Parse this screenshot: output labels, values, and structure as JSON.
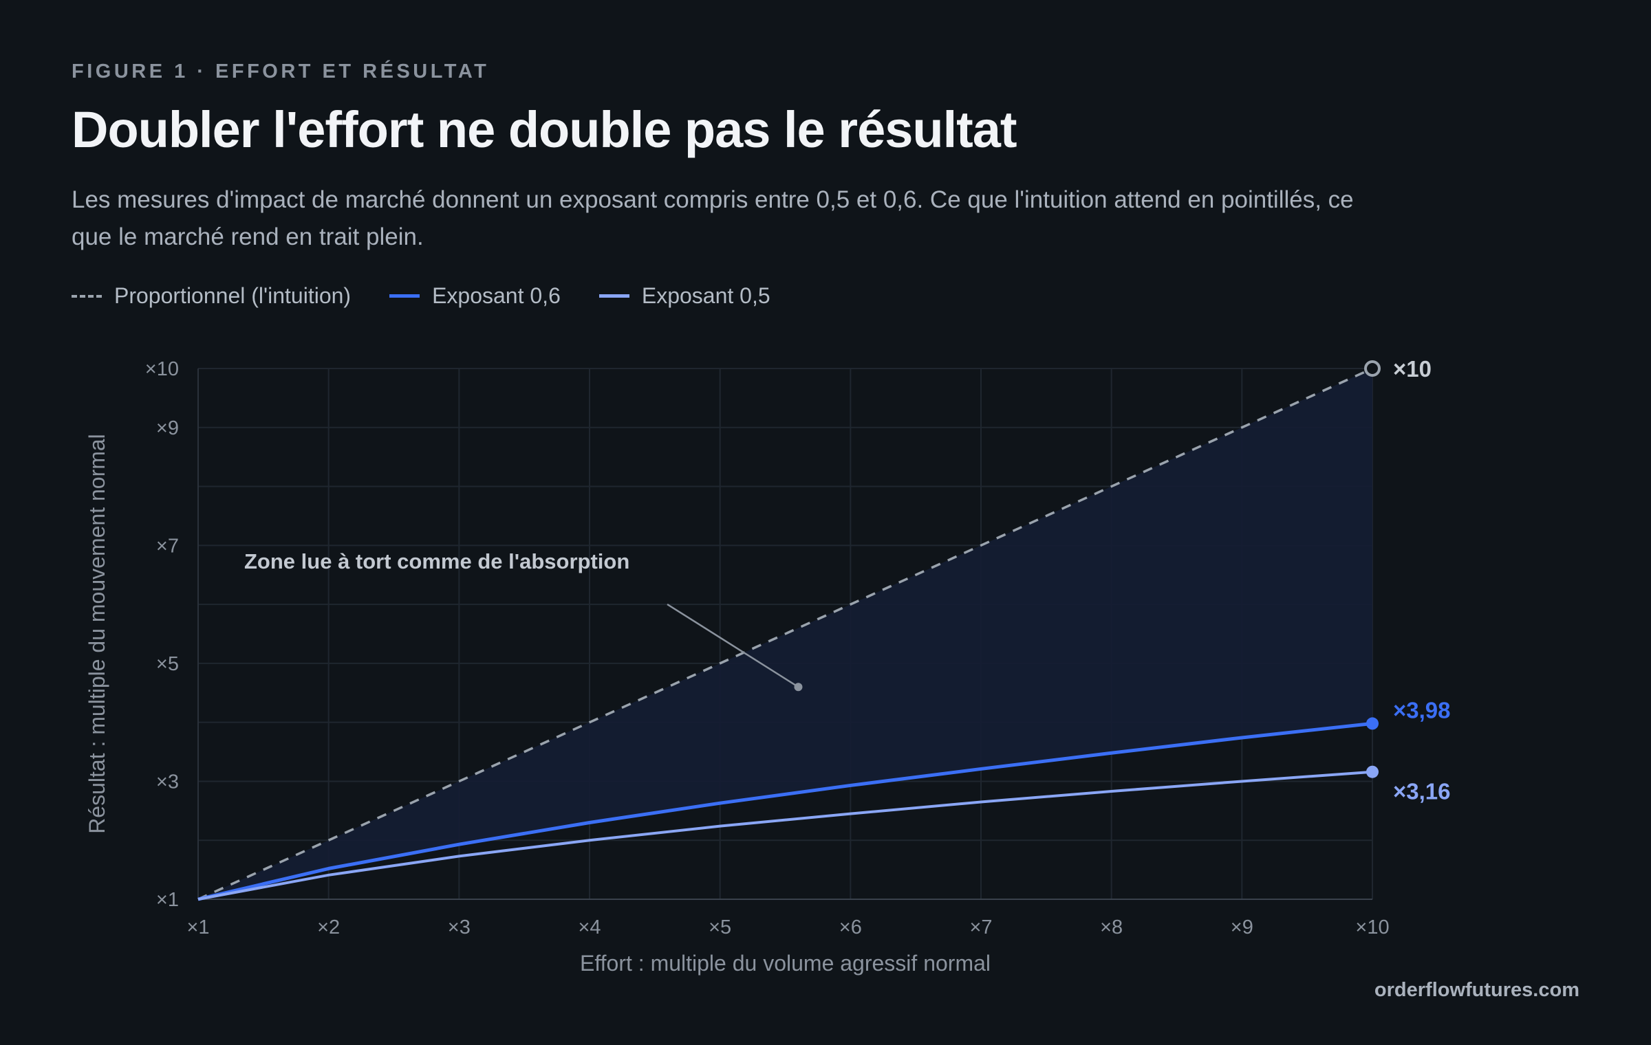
{
  "kicker": "FIGURE 1 · EFFORT ET RÉSULTAT",
  "title": "Doubler l'effort ne double pas le résultat",
  "subtitle": "Les mesures d'impact de marché donnent un exposant compris entre 0,5 et 0,6. Ce que l'intuition attend en pointillés, ce que le marché rend en trait plein.",
  "legend": [
    {
      "label": "Proportionnel (l'intuition)",
      "style": "dashed"
    },
    {
      "label": "Exposant 0,6",
      "style": "solid-dark"
    },
    {
      "label": "Exposant 0,5",
      "style": "solid-light"
    }
  ],
  "brand": "orderflowfutures.com",
  "colors": {
    "proportional": "#9aa3ad",
    "exp06": "#3b6ff5",
    "exp05": "#8aa6f5",
    "fill": "#141d33",
    "grid": "#1f262f",
    "tick": "#8b939e"
  },
  "chart_data": {
    "type": "line",
    "x": [
      1,
      2,
      3,
      4,
      5,
      6,
      7,
      8,
      9,
      10
    ],
    "xlabel": "Effort : multiple du volume agressif normal",
    "ylabel": "Résultat : multiple du mouvement normal",
    "xlim": [
      1,
      10
    ],
    "ylim": [
      1,
      10
    ],
    "xticks": [
      1,
      2,
      3,
      4,
      5,
      6,
      7,
      8,
      9,
      10
    ],
    "xtick_labels": [
      "×1",
      "×2",
      "×3",
      "×4",
      "×5",
      "×6",
      "×7",
      "×8",
      "×9",
      "×10"
    ],
    "yticks": [
      1,
      3,
      5,
      7,
      9,
      10
    ],
    "ytick_labels": [
      "×1",
      "×3",
      "×5",
      "×7",
      "×9",
      "×10"
    ],
    "grid": true,
    "legend_position": "top-left",
    "series": [
      {
        "name": "Proportionnel (l'intuition)",
        "style": "dashed",
        "values": [
          1,
          2,
          3,
          4,
          5,
          6,
          7,
          8,
          9,
          10
        ],
        "end_label": "×10"
      },
      {
        "name": "Exposant 0,6",
        "style": "solid",
        "values": [
          1,
          1.52,
          1.93,
          2.3,
          2.63,
          2.93,
          3.21,
          3.48,
          3.74,
          3.98
        ],
        "end_label": "×3,98"
      },
      {
        "name": "Exposant 0,5",
        "style": "solid",
        "values": [
          1,
          1.41,
          1.73,
          2.0,
          2.24,
          2.45,
          2.65,
          2.83,
          3.0,
          3.16
        ],
        "end_label": "×3,16"
      }
    ],
    "annotation": {
      "text": "Zone lue à tort comme de l'absorption",
      "x": 5.6,
      "y": 4.6
    }
  }
}
